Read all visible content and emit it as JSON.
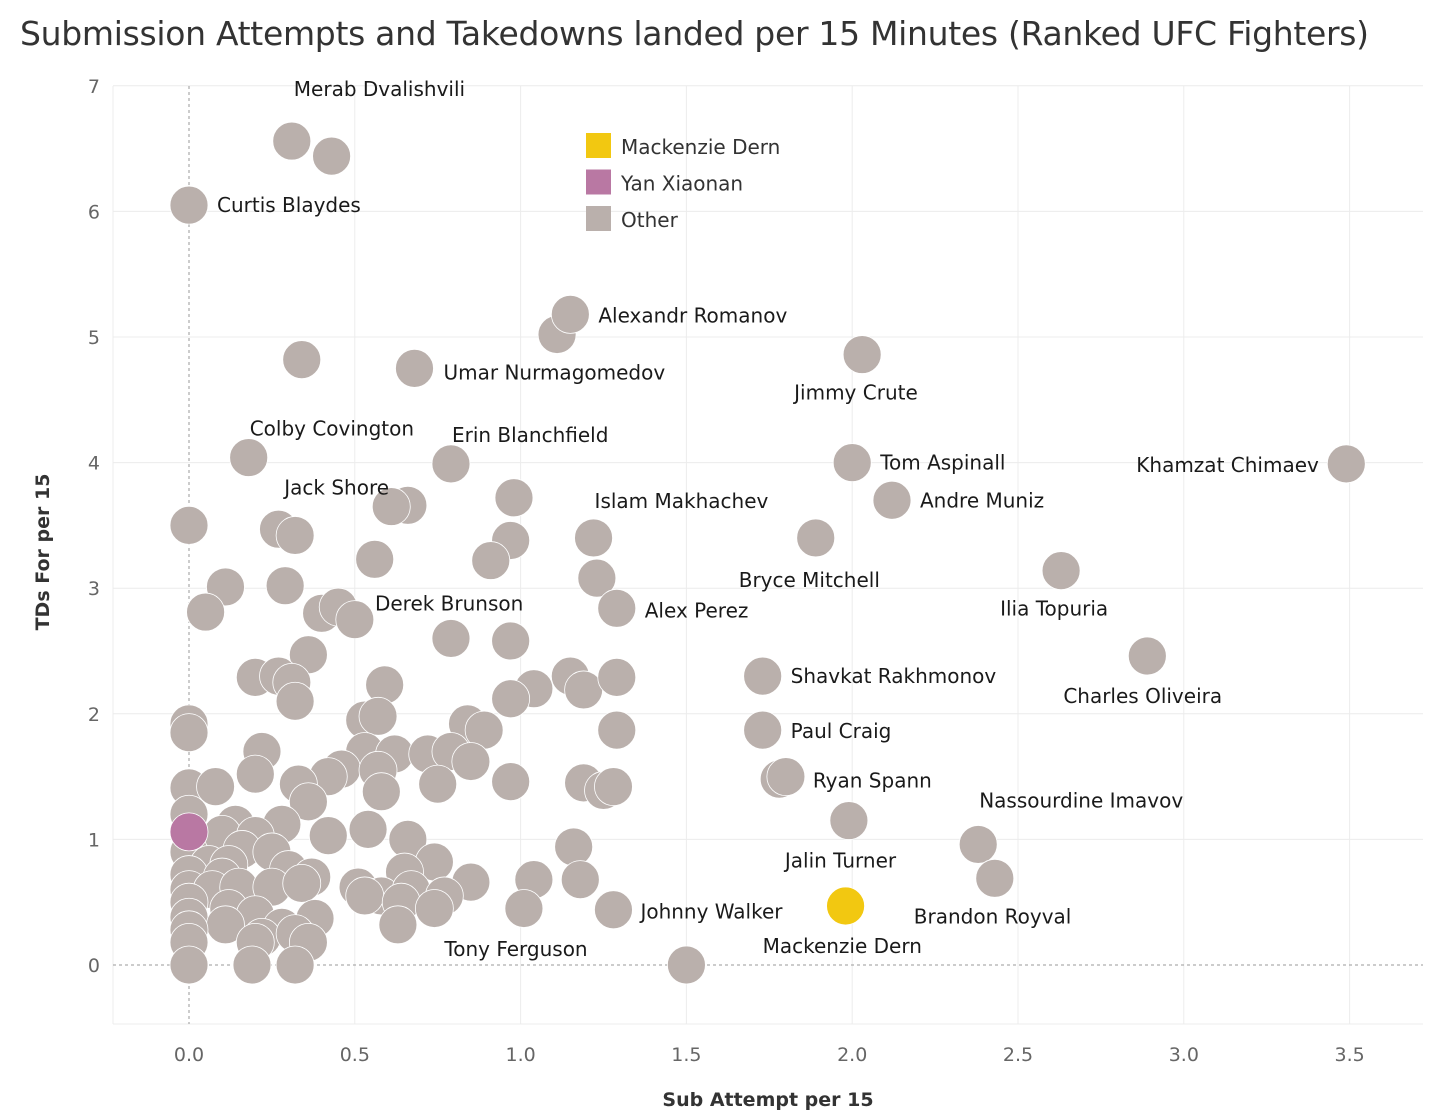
{
  "chart_data": {
    "type": "scatter",
    "title": "Submission Attempts and Takedowns landed per 15 Minutes (Ranked UFC Fighters)",
    "xlabel": "Sub Attempt per 15",
    "ylabel": "TDs For per 15",
    "xlim": [
      -0.22,
      3.7
    ],
    "ylim": [
      -0.45,
      7.1
    ],
    "x_ticks": [
      "0.0",
      "0.5",
      "1.0",
      "1.5",
      "2.0",
      "2.5",
      "3.0",
      "3.5"
    ],
    "y_ticks": [
      "0",
      "1",
      "2",
      "3",
      "4",
      "5",
      "6",
      "7"
    ],
    "grid": true,
    "legend_position": "top-center",
    "legend": [
      {
        "label": "Mackenzie Dern",
        "color": "#f2c811"
      },
      {
        "label": "Yan Xiaonan",
        "color": "#b978a3"
      },
      {
        "label": "Other",
        "color": "#bab0ac"
      }
    ],
    "labeled_points": [
      {
        "name": "Merab Dvalishvili",
        "x": 0.31,
        "y": 6.56,
        "group": "Other"
      },
      {
        "name": "Curtis Blaydes",
        "x": 0.0,
        "y": 6.05,
        "group": "Other"
      },
      {
        "name": "Alexandr Romanov",
        "x": 1.15,
        "y": 5.18,
        "group": "Other"
      },
      {
        "name": "Umar Nurmagomedov",
        "x": 0.68,
        "y": 4.75,
        "group": "Other"
      },
      {
        "name": "Jimmy Crute",
        "x": 2.03,
        "y": 4.86,
        "group": "Other"
      },
      {
        "name": "Colby Covington",
        "x": 0.18,
        "y": 4.04,
        "group": "Other"
      },
      {
        "name": "Erin Blanchfield",
        "x": 0.79,
        "y": 3.99,
        "group": "Other"
      },
      {
        "name": "Jack Shore",
        "x": 0.61,
        "y": 3.65,
        "group": "Other"
      },
      {
        "name": "Tom Aspinall",
        "x": 2.0,
        "y": 4.0,
        "group": "Other"
      },
      {
        "name": "Khamzat Chimaev",
        "x": 3.49,
        "y": 3.99,
        "group": "Other"
      },
      {
        "name": "Andre Muniz",
        "x": 2.12,
        "y": 3.7,
        "group": "Other"
      },
      {
        "name": "Islam Makhachev",
        "x": 1.22,
        "y": 3.4,
        "group": "Other"
      },
      {
        "name": "Bryce Mitchell",
        "x": 1.89,
        "y": 3.4,
        "group": "Other"
      },
      {
        "name": "Ilia Topuria",
        "x": 2.63,
        "y": 3.14,
        "group": "Other"
      },
      {
        "name": "Derek Brunson",
        "x": 0.79,
        "y": 2.6,
        "group": "Other"
      },
      {
        "name": "Alex Perez",
        "x": 1.29,
        "y": 2.84,
        "group": "Other"
      },
      {
        "name": "Shavkat Rakhmonov",
        "x": 1.73,
        "y": 2.3,
        "group": "Other"
      },
      {
        "name": "Charles Oliveira",
        "x": 2.89,
        "y": 2.46,
        "group": "Other"
      },
      {
        "name": "Paul Craig",
        "x": 1.73,
        "y": 1.87,
        "group": "Other"
      },
      {
        "name": "Ryan Spann",
        "x": 1.8,
        "y": 1.5,
        "group": "Other"
      },
      {
        "name": "Nassourdine Imavov",
        "x": 2.38,
        "y": 0.96,
        "group": "Other"
      },
      {
        "name": "Jalin Turner",
        "x": 1.99,
        "y": 1.15,
        "group": "Other"
      },
      {
        "name": "Brandon Royval",
        "x": 2.43,
        "y": 0.69,
        "group": "Other"
      },
      {
        "name": "Johnny Walker",
        "x": 1.28,
        "y": 0.44,
        "group": "Other"
      },
      {
        "name": "Tony Ferguson",
        "x": 1.5,
        "y": 0.0,
        "group": "Other"
      },
      {
        "name": "Mackenzie Dern",
        "x": 1.98,
        "y": 0.47,
        "group": "Mackenzie Dern"
      }
    ],
    "points": [
      {
        "x": 0.0,
        "y": 1.06,
        "group": "Yan Xiaonan"
      },
      {
        "x": 0.43,
        "y": 6.44,
        "group": "Other"
      },
      {
        "x": 1.11,
        "y": 5.02,
        "group": "Other"
      },
      {
        "x": 0.34,
        "y": 4.82,
        "group": "Other"
      },
      {
        "x": 0.66,
        "y": 3.66,
        "group": "Other"
      },
      {
        "x": 0.98,
        "y": 3.72,
        "group": "Other"
      },
      {
        "x": 0.97,
        "y": 3.38,
        "group": "Other"
      },
      {
        "x": 0.91,
        "y": 3.22,
        "group": "Other"
      },
      {
        "x": 0.0,
        "y": 3.5,
        "group": "Other"
      },
      {
        "x": 0.27,
        "y": 3.47,
        "group": "Other"
      },
      {
        "x": 0.32,
        "y": 3.42,
        "group": "Other"
      },
      {
        "x": 0.56,
        "y": 3.23,
        "group": "Other"
      },
      {
        "x": 1.23,
        "y": 3.08,
        "group": "Other"
      },
      {
        "x": 0.11,
        "y": 3.01,
        "group": "Other"
      },
      {
        "x": 0.29,
        "y": 3.02,
        "group": "Other"
      },
      {
        "x": 0.05,
        "y": 2.81,
        "group": "Other"
      },
      {
        "x": 0.4,
        "y": 2.8,
        "group": "Other"
      },
      {
        "x": 0.45,
        "y": 2.85,
        "group": "Other"
      },
      {
        "x": 0.5,
        "y": 2.75,
        "group": "Other"
      },
      {
        "x": 0.97,
        "y": 2.58,
        "group": "Other"
      },
      {
        "x": 0.36,
        "y": 2.47,
        "group": "Other"
      },
      {
        "x": 0.2,
        "y": 2.29,
        "group": "Other"
      },
      {
        "x": 0.27,
        "y": 2.3,
        "group": "Other"
      },
      {
        "x": 0.31,
        "y": 2.25,
        "group": "Other"
      },
      {
        "x": 0.32,
        "y": 2.1,
        "group": "Other"
      },
      {
        "x": 0.59,
        "y": 2.23,
        "group": "Other"
      },
      {
        "x": 1.04,
        "y": 2.2,
        "group": "Other"
      },
      {
        "x": 0.97,
        "y": 2.12,
        "group": "Other"
      },
      {
        "x": 1.15,
        "y": 2.3,
        "group": "Other"
      },
      {
        "x": 1.19,
        "y": 2.19,
        "group": "Other"
      },
      {
        "x": 1.29,
        "y": 2.29,
        "group": "Other"
      },
      {
        "x": 1.29,
        "y": 1.87,
        "group": "Other"
      },
      {
        "x": 0.0,
        "y": 1.92,
        "group": "Other"
      },
      {
        "x": 0.0,
        "y": 1.85,
        "group": "Other"
      },
      {
        "x": 0.22,
        "y": 1.7,
        "group": "Other"
      },
      {
        "x": 0.53,
        "y": 1.95,
        "group": "Other"
      },
      {
        "x": 0.57,
        "y": 1.98,
        "group": "Other"
      },
      {
        "x": 0.84,
        "y": 1.92,
        "group": "Other"
      },
      {
        "x": 0.89,
        "y": 1.87,
        "group": "Other"
      },
      {
        "x": 0.53,
        "y": 1.7,
        "group": "Other"
      },
      {
        "x": 0.62,
        "y": 1.68,
        "group": "Other"
      },
      {
        "x": 0.72,
        "y": 1.68,
        "group": "Other"
      },
      {
        "x": 0.79,
        "y": 1.7,
        "group": "Other"
      },
      {
        "x": 0.85,
        "y": 1.62,
        "group": "Other"
      },
      {
        "x": 0.46,
        "y": 1.56,
        "group": "Other"
      },
      {
        "x": 0.57,
        "y": 1.55,
        "group": "Other"
      },
      {
        "x": 0.2,
        "y": 1.52,
        "group": "Other"
      },
      {
        "x": 0.42,
        "y": 1.5,
        "group": "Other"
      },
      {
        "x": 0.0,
        "y": 1.41,
        "group": "Other"
      },
      {
        "x": 0.08,
        "y": 1.42,
        "group": "Other"
      },
      {
        "x": 0.33,
        "y": 1.44,
        "group": "Other"
      },
      {
        "x": 0.58,
        "y": 1.38,
        "group": "Other"
      },
      {
        "x": 0.75,
        "y": 1.44,
        "group": "Other"
      },
      {
        "x": 0.97,
        "y": 1.46,
        "group": "Other"
      },
      {
        "x": 1.19,
        "y": 1.45,
        "group": "Other"
      },
      {
        "x": 1.25,
        "y": 1.39,
        "group": "Other"
      },
      {
        "x": 1.28,
        "y": 1.42,
        "group": "Other"
      },
      {
        "x": 1.78,
        "y": 1.48,
        "group": "Other"
      },
      {
        "x": 0.36,
        "y": 1.3,
        "group": "Other"
      },
      {
        "x": 0.0,
        "y": 1.2,
        "group": "Other"
      },
      {
        "x": 0.14,
        "y": 1.12,
        "group": "Other"
      },
      {
        "x": 0.28,
        "y": 1.12,
        "group": "Other"
      },
      {
        "x": 0.1,
        "y": 1.04,
        "group": "Other"
      },
      {
        "x": 0.2,
        "y": 1.03,
        "group": "Other"
      },
      {
        "x": 0.42,
        "y": 1.03,
        "group": "Other"
      },
      {
        "x": 0.54,
        "y": 1.08,
        "group": "Other"
      },
      {
        "x": 0.66,
        "y": 1.0,
        "group": "Other"
      },
      {
        "x": 0.0,
        "y": 0.9,
        "group": "Other"
      },
      {
        "x": 0.16,
        "y": 0.92,
        "group": "Other"
      },
      {
        "x": 0.25,
        "y": 0.9,
        "group": "Other"
      },
      {
        "x": 0.06,
        "y": 0.8,
        "group": "Other"
      },
      {
        "x": 0.12,
        "y": 0.8,
        "group": "Other"
      },
      {
        "x": 1.16,
        "y": 0.94,
        "group": "Other"
      },
      {
        "x": 0.74,
        "y": 0.82,
        "group": "Other"
      },
      {
        "x": 0.0,
        "y": 0.72,
        "group": "Other"
      },
      {
        "x": 0.1,
        "y": 0.7,
        "group": "Other"
      },
      {
        "x": 0.3,
        "y": 0.76,
        "group": "Other"
      },
      {
        "x": 0.37,
        "y": 0.7,
        "group": "Other"
      },
      {
        "x": 0.65,
        "y": 0.74,
        "group": "Other"
      },
      {
        "x": 0.85,
        "y": 0.66,
        "group": "Other"
      },
      {
        "x": 1.04,
        "y": 0.68,
        "group": "Other"
      },
      {
        "x": 1.18,
        "y": 0.68,
        "group": "Other"
      },
      {
        "x": 0.0,
        "y": 0.6,
        "group": "Other"
      },
      {
        "x": 0.07,
        "y": 0.6,
        "group": "Other"
      },
      {
        "x": 0.15,
        "y": 0.62,
        "group": "Other"
      },
      {
        "x": 0.25,
        "y": 0.62,
        "group": "Other"
      },
      {
        "x": 0.34,
        "y": 0.65,
        "group": "Other"
      },
      {
        "x": 0.51,
        "y": 0.62,
        "group": "Other"
      },
      {
        "x": 0.58,
        "y": 0.55,
        "group": "Other"
      },
      {
        "x": 0.67,
        "y": 0.6,
        "group": "Other"
      },
      {
        "x": 0.77,
        "y": 0.55,
        "group": "Other"
      },
      {
        "x": 0.0,
        "y": 0.5,
        "group": "Other"
      },
      {
        "x": 0.12,
        "y": 0.45,
        "group": "Other"
      },
      {
        "x": 0.2,
        "y": 0.4,
        "group": "Other"
      },
      {
        "x": 0.53,
        "y": 0.55,
        "group": "Other"
      },
      {
        "x": 0.64,
        "y": 0.5,
        "group": "Other"
      },
      {
        "x": 0.74,
        "y": 0.45,
        "group": "Other"
      },
      {
        "x": 1.01,
        "y": 0.45,
        "group": "Other"
      },
      {
        "x": 0.0,
        "y": 0.38,
        "group": "Other"
      },
      {
        "x": 0.11,
        "y": 0.32,
        "group": "Other"
      },
      {
        "x": 0.28,
        "y": 0.3,
        "group": "Other"
      },
      {
        "x": 0.38,
        "y": 0.37,
        "group": "Other"
      },
      {
        "x": 0.63,
        "y": 0.32,
        "group": "Other"
      },
      {
        "x": 0.0,
        "y": 0.28,
        "group": "Other"
      },
      {
        "x": 0.22,
        "y": 0.22,
        "group": "Other"
      },
      {
        "x": 0.32,
        "y": 0.25,
        "group": "Other"
      },
      {
        "x": 0.0,
        "y": 0.18,
        "group": "Other"
      },
      {
        "x": 0.2,
        "y": 0.18,
        "group": "Other"
      },
      {
        "x": 0.36,
        "y": 0.18,
        "group": "Other"
      },
      {
        "x": 0.0,
        "y": 0.0,
        "group": "Other"
      },
      {
        "x": 0.19,
        "y": 0.0,
        "group": "Other"
      },
      {
        "x": 0.32,
        "y": 0.0,
        "group": "Other"
      }
    ]
  }
}
